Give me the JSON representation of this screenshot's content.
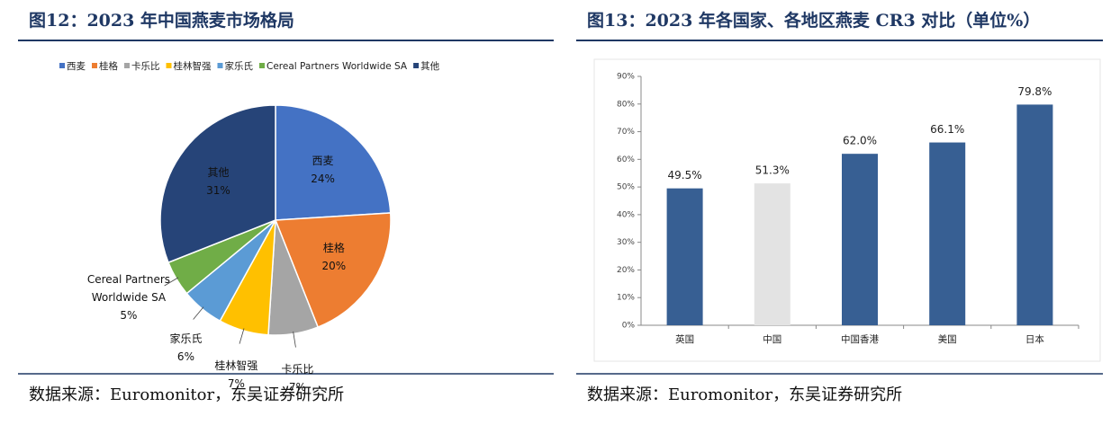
{
  "chart_data": [
    {
      "type": "pie",
      "title": "图12：2023 年中国燕麦市场格局",
      "categories": [
        "西麦",
        "桂格",
        "卡乐比",
        "桂林智强",
        "家乐氏",
        "Cereal Partners Worldwide SA",
        "其他"
      ],
      "values": [
        24,
        20,
        7,
        7,
        6,
        5,
        31
      ],
      "value_labels": [
        "24%",
        "20%",
        "7%",
        "7%",
        "6%",
        "5%",
        "31%"
      ],
      "colors": [
        "#4472c4",
        "#ed7d31",
        "#a5a5a5",
        "#ffc000",
        "#5b9bd5",
        "#70ad47",
        "#264478"
      ],
      "legend": "top",
      "source": "数据来源：Euromonitor，东吴证券研究所"
    },
    {
      "type": "bar",
      "title": "图13：2023 年各国家、各地区燕麦 CR3 对比（单位%）",
      "categories": [
        "英国",
        "中国",
        "中国香港",
        "美国",
        "日本"
      ],
      "values": [
        49.5,
        51.3,
        62.0,
        66.1,
        79.8
      ],
      "value_labels": [
        "49.5%",
        "51.3%",
        "62.0%",
        "66.1%",
        "79.8%"
      ],
      "colors": [
        "#375f93",
        "#e3e3e3",
        "#375f93",
        "#375f93",
        "#375f93"
      ],
      "ylim": [
        0,
        90
      ],
      "yticks": [
        {
          "value": 0,
          "label": "0%"
        },
        {
          "value": 10,
          "label": "10%"
        },
        {
          "value": 20,
          "label": "20%"
        },
        {
          "value": 30,
          "label": "30%"
        },
        {
          "value": 40,
          "label": "40%"
        },
        {
          "value": 50,
          "label": "50%"
        },
        {
          "value": 60,
          "label": "60%"
        },
        {
          "value": 70,
          "label": "70%"
        },
        {
          "value": 80,
          "label": "80%"
        },
        {
          "value": 90,
          "label": "90%"
        }
      ],
      "grid": false,
      "source": "数据来源：Euromonitor，东吴证券研究所"
    }
  ]
}
